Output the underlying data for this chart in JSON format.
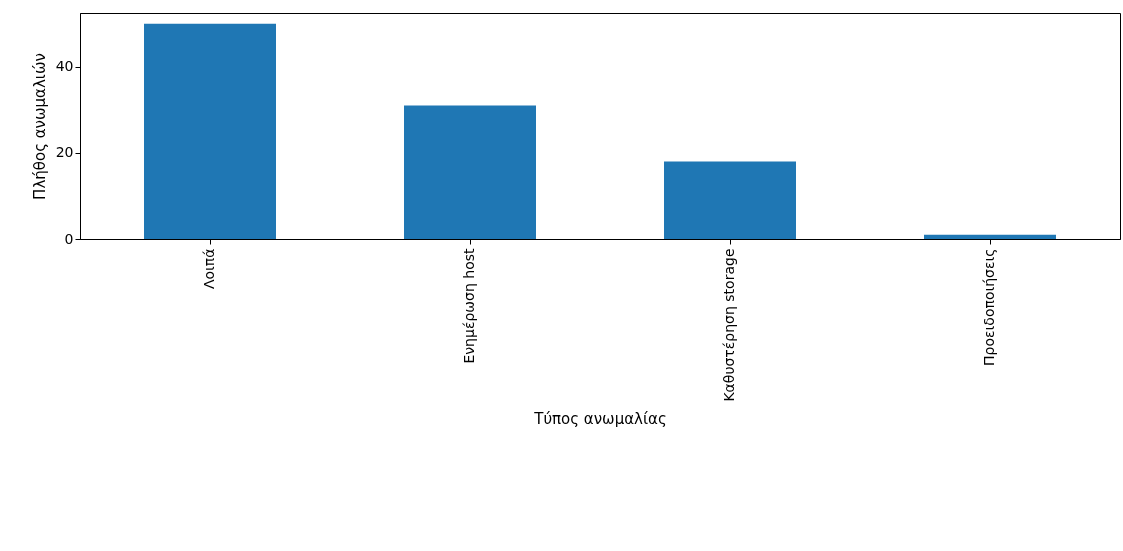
{
  "chart_data": {
    "type": "bar",
    "xlabel": "Τύπος ανωμαλίας",
    "ylabel": "Πλήθος ανωμαλιών",
    "categories": [
      "Λοιπά",
      "Ενημέρωση host",
      "Καθυστέρηση storage",
      "Προειδοποιήσεις"
    ],
    "values": [
      50,
      31,
      18,
      1
    ],
    "color": "#1f77b4",
    "ylim": [
      0,
      52.5
    ],
    "yticks": [
      0,
      20,
      40
    ],
    "grid": false
  }
}
